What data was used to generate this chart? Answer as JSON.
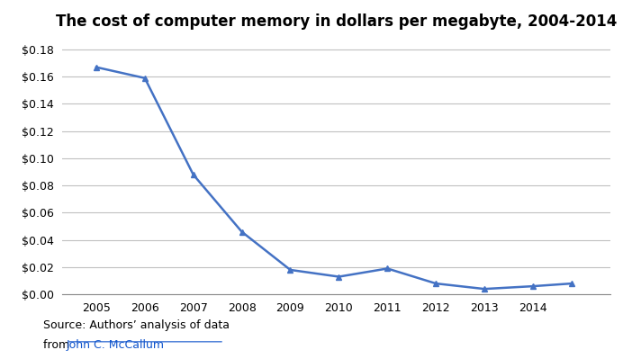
{
  "title": "The cost of computer memory in dollars per megabyte, 2004-2014",
  "x_labels": [
    "2005",
    "2006",
    "2007",
    "2008",
    "2009",
    "2010",
    "2011",
    "2012",
    "2013",
    "2014",
    ""
  ],
  "x_values": [
    2005,
    2006,
    2007,
    2008,
    2009,
    2010,
    2011,
    2012,
    2013,
    2014,
    2014.8
  ],
  "y_values": [
    0.167,
    0.159,
    0.088,
    0.046,
    0.018,
    0.013,
    0.019,
    0.008,
    0.004,
    0.006,
    0.008
  ],
  "line_color": "#4472C4",
  "marker": "^",
  "marker_size": 5,
  "line_width": 1.8,
  "ylim": [
    0,
    0.19
  ],
  "yticks": [
    0.0,
    0.02,
    0.04,
    0.06,
    0.08,
    0.1,
    0.12,
    0.14,
    0.16,
    0.18
  ],
  "background_color": "#ffffff",
  "grid_color": "#c0c0c0",
  "title_fontsize": 12,
  "tick_fontsize": 9,
  "source_text1": "Source: Authors’ analysis of data",
  "source_text2": "from ",
  "source_link_text": "John C. McCallum",
  "source_link_color": "#1155CC",
  "source_fontsize": 9
}
